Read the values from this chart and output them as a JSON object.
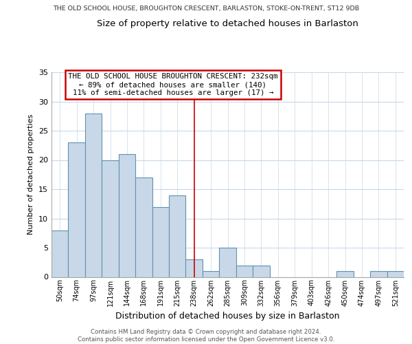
{
  "suptitle": "THE OLD SCHOOL HOUSE, BROUGHTON CRESCENT, BARLASTON, STOKE-ON-TRENT, ST12 9DB",
  "title": "Size of property relative to detached houses in Barlaston",
  "xlabel": "Distribution of detached houses by size in Barlaston",
  "ylabel": "Number of detached properties",
  "bar_labels": [
    "50sqm",
    "74sqm",
    "97sqm",
    "121sqm",
    "144sqm",
    "168sqm",
    "191sqm",
    "215sqm",
    "238sqm",
    "262sqm",
    "285sqm",
    "309sqm",
    "332sqm",
    "356sqm",
    "379sqm",
    "403sqm",
    "426sqm",
    "450sqm",
    "474sqm",
    "497sqm",
    "521sqm"
  ],
  "bar_values": [
    8,
    23,
    28,
    20,
    21,
    17,
    12,
    14,
    3,
    1,
    5,
    2,
    2,
    0,
    0,
    0,
    0,
    1,
    0,
    1,
    1
  ],
  "bar_color": "#c8d8e8",
  "bar_edge_color": "#6090b0",
  "property_line_x": 8,
  "ylim": [
    0,
    35
  ],
  "annotation_text": "THE OLD SCHOOL HOUSE BROUGHTON CRESCENT: 232sqm\n← 89% of detached houses are smaller (140)\n11% of semi-detached houses are larger (17) →",
  "annotation_box_color": "#ffffff",
  "annotation_box_edge_color": "#cc0000",
  "footer_text": "Contains HM Land Registry data © Crown copyright and database right 2024.\nContains public sector information licensed under the Open Government Licence v3.0.",
  "background_color": "#ffffff",
  "grid_color": "#c8d8e8",
  "ref_line_color": "#cc0000"
}
